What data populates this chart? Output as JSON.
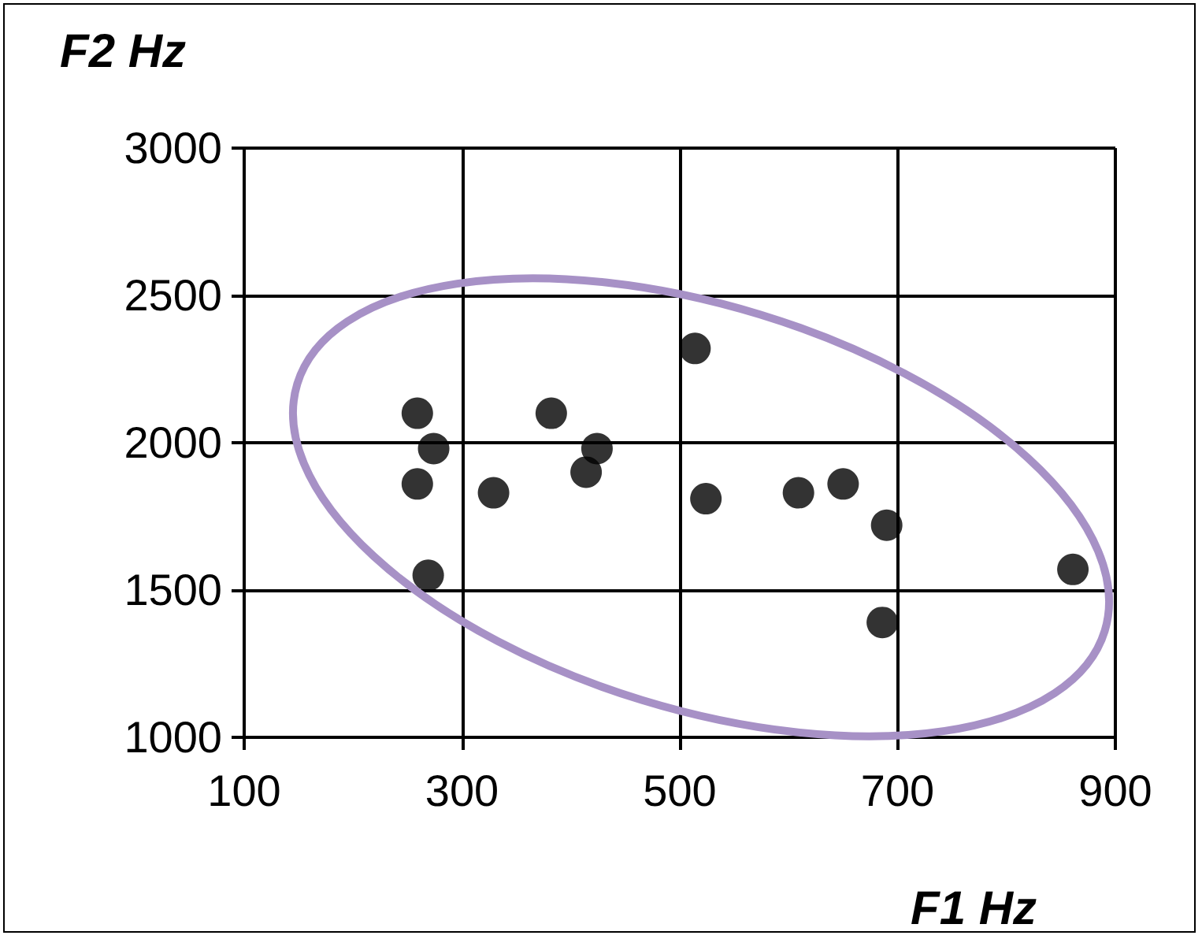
{
  "chart_data": {
    "type": "scatter",
    "xlabel": "F1 Hz",
    "ylabel": "F2 Hz",
    "x": [
      259,
      259,
      274,
      269,
      329,
      382,
      414,
      424,
      514,
      524,
      609,
      650,
      690,
      686,
      861
    ],
    "values": [
      2100,
      1860,
      1980,
      1550,
      1830,
      2100,
      1900,
      1980,
      2320,
      1810,
      1830,
      1860,
      1720,
      1390,
      1570
    ],
    "color": "#000000",
    "marker": "circle",
    "xlim": [
      100,
      900
    ],
    "xticks": [
      100,
      300,
      500,
      700,
      900
    ],
    "ylim": [
      1000,
      3000
    ],
    "yticks": [
      1000,
      1500,
      2000,
      2500,
      3000
    ],
    "grid": true
  }
}
